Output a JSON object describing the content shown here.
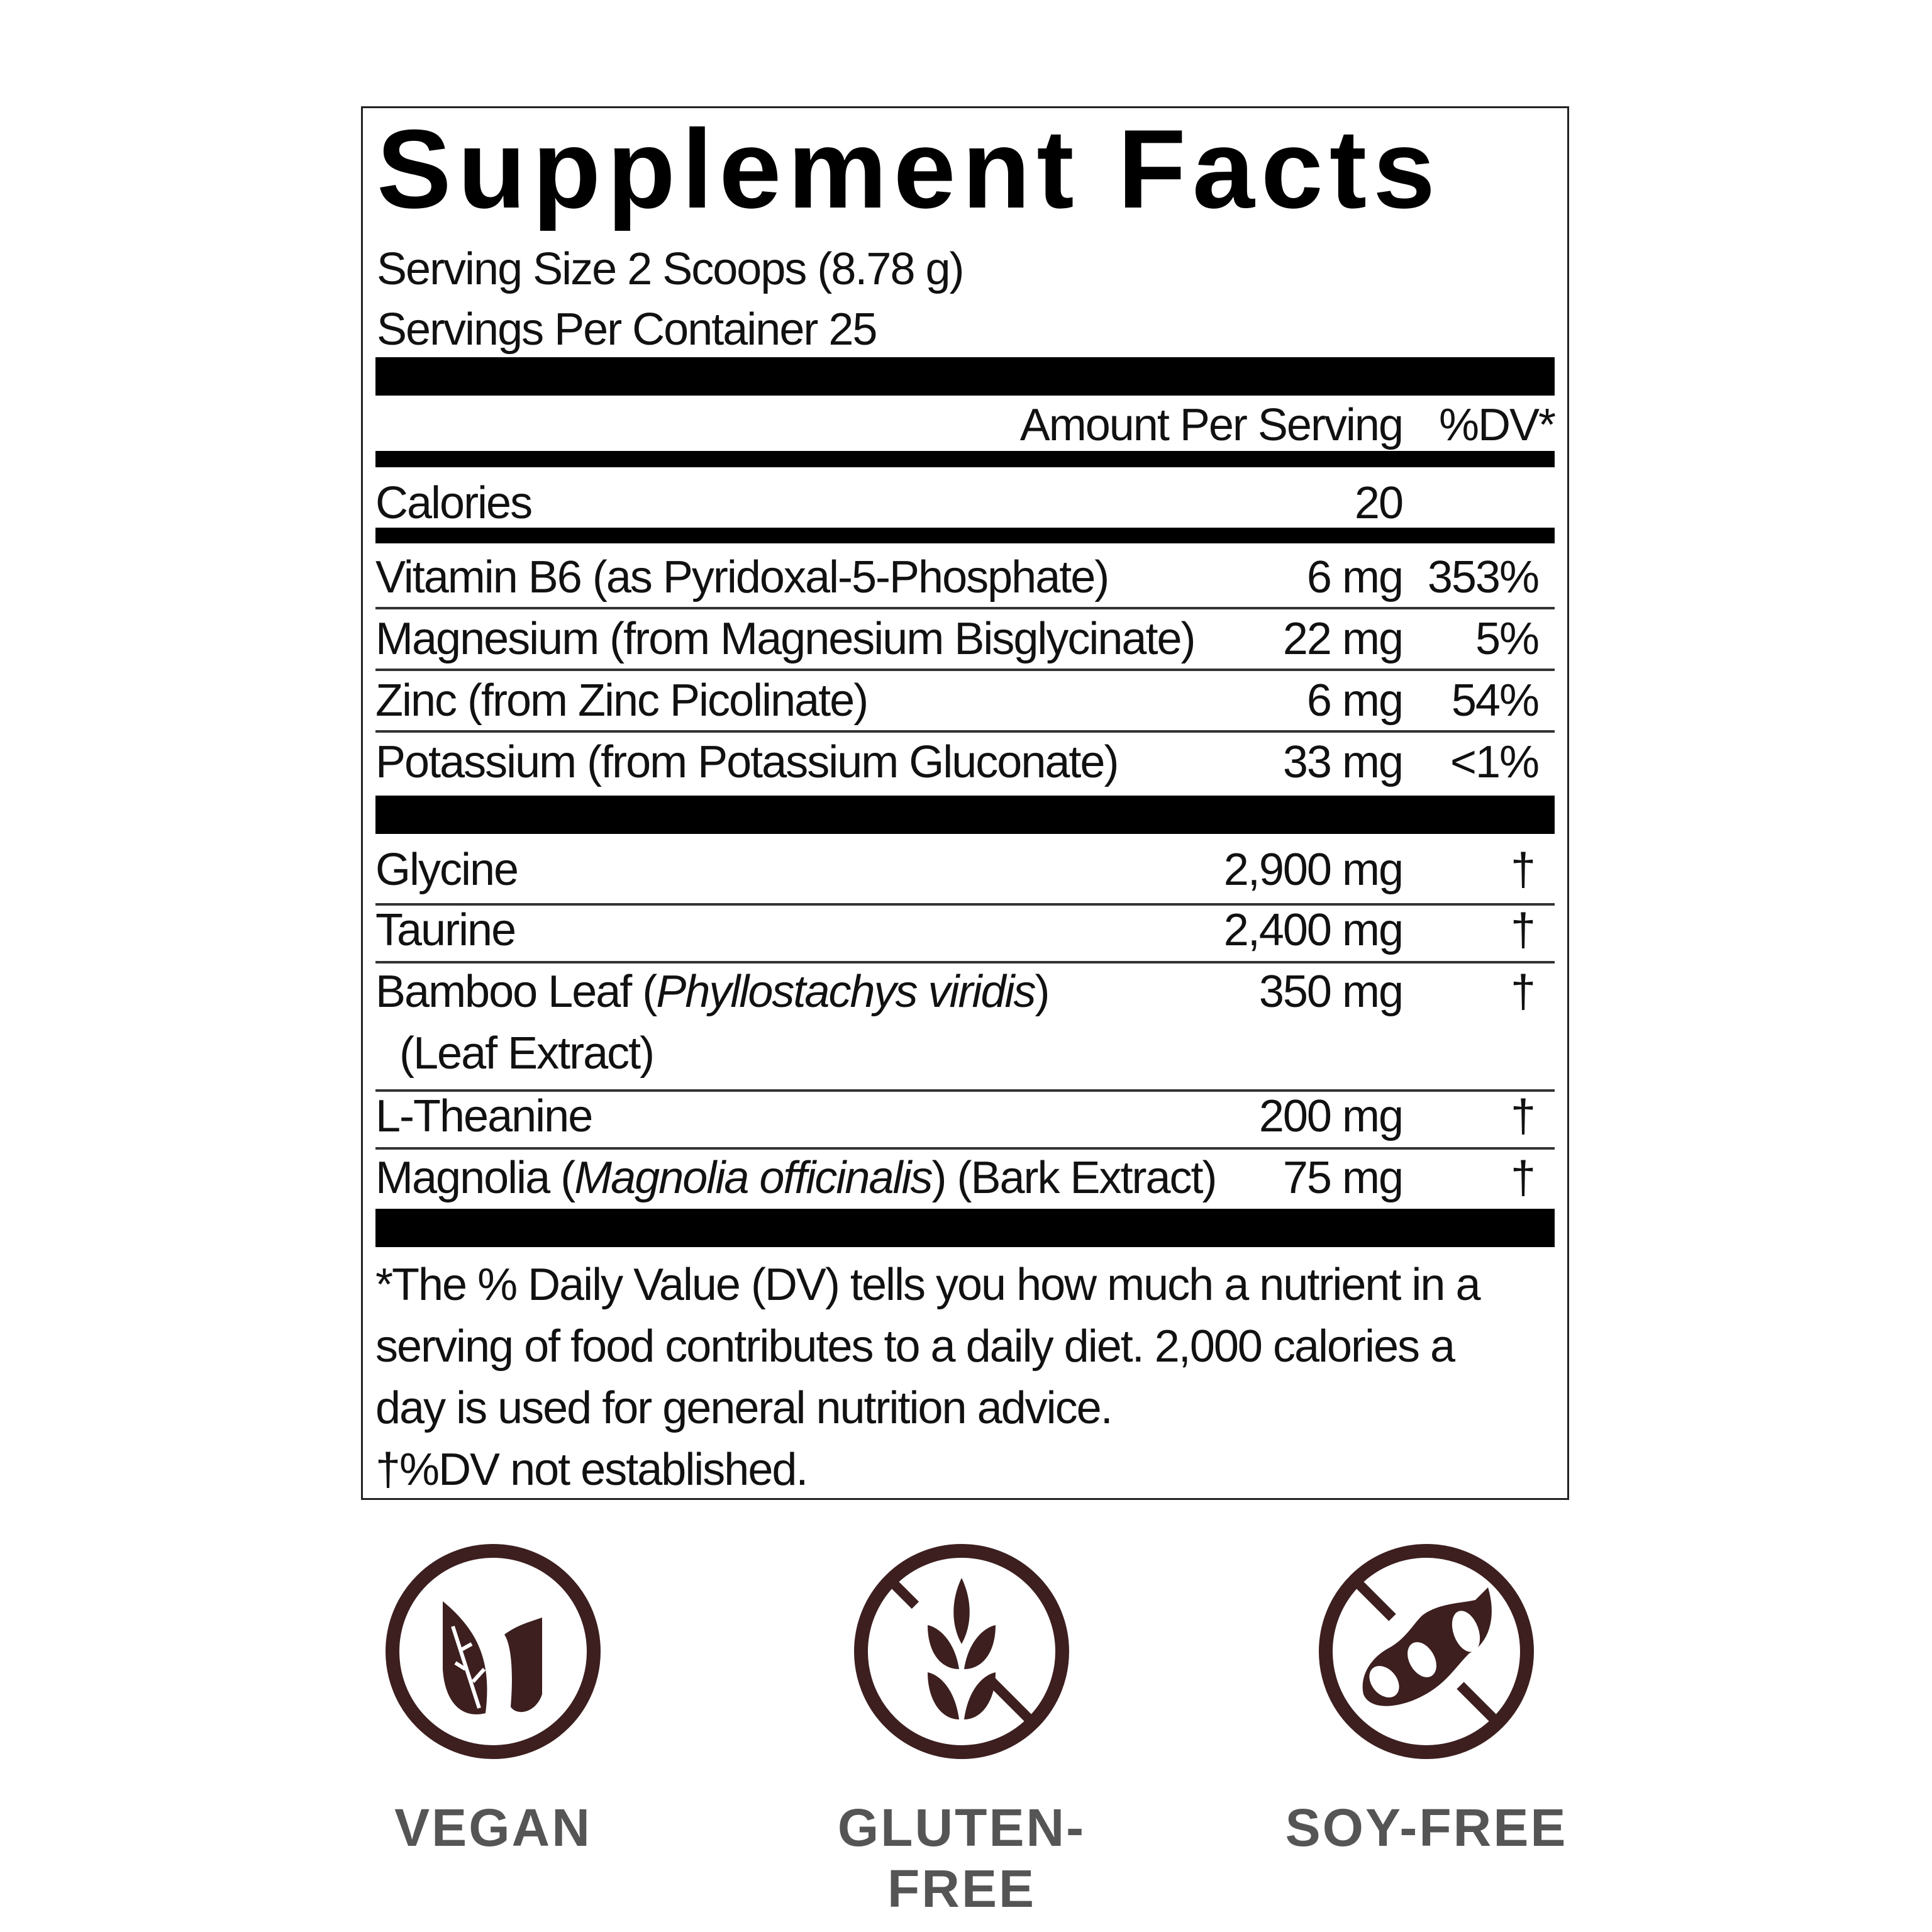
{
  "title": "Supplement Facts",
  "serving_size": "Serving Size 2 Scoops (8.78 g)",
  "servings_per_container": "Servings Per Container 25",
  "header": {
    "amount": "Amount Per Serving",
    "dv": "%DV*"
  },
  "calories": {
    "label": "Calories",
    "amount": "20"
  },
  "nutrients": [
    {
      "name": "Vitamin B6 (as Pyridoxal-5-Phosphate)",
      "amount": "6 mg",
      "dv": "353%"
    },
    {
      "name": "Magnesium (from Magnesium Bisglycinate)",
      "amount": "22 mg",
      "dv": "5%"
    },
    {
      "name": "Zinc (from Zinc Picolinate)",
      "amount": "6 mg",
      "dv": "54%"
    },
    {
      "name": "Potassium (from Potassium Gluconate)",
      "amount": "33 mg",
      "dv": "<1%"
    }
  ],
  "other_ingredients": [
    {
      "name": "Glycine",
      "amount": "2,900 mg",
      "dv": "†"
    },
    {
      "name": "Taurine",
      "amount": "2,400 mg",
      "dv": "†"
    },
    {
      "name_parts": [
        "Bamboo Leaf (",
        "Phyllostachys viridis",
        ")"
      ],
      "name_line2": "(Leaf Extract)",
      "amount": "350 mg",
      "dv": "†"
    },
    {
      "name": "L-Theanine",
      "amount": "200 mg",
      "dv": "†"
    },
    {
      "name_parts": [
        "Magnolia (",
        "Magnolia officinalis",
        ") (Bark Extract)"
      ],
      "amount": "75 mg",
      "dv": "†"
    }
  ],
  "footnote": [
    "*The % Daily Value (DV) tells you how much a nutrient in a",
    "serving of food contributes to a daily diet. 2,000 calories a",
    "day is used for general nutrition advice.",
    "†%DV not established."
  ],
  "badges": [
    {
      "label": "VEGAN",
      "icon": "leaf-icon"
    },
    {
      "label": "GLUTEN-FREE",
      "icon": "wheat-crossed-icon"
    },
    {
      "label": "SOY-FREE",
      "icon": "soybean-crossed-icon"
    }
  ],
  "colors": {
    "icon": "#3d1f20",
    "badge_text": "#555555",
    "rules": "#000000"
  }
}
